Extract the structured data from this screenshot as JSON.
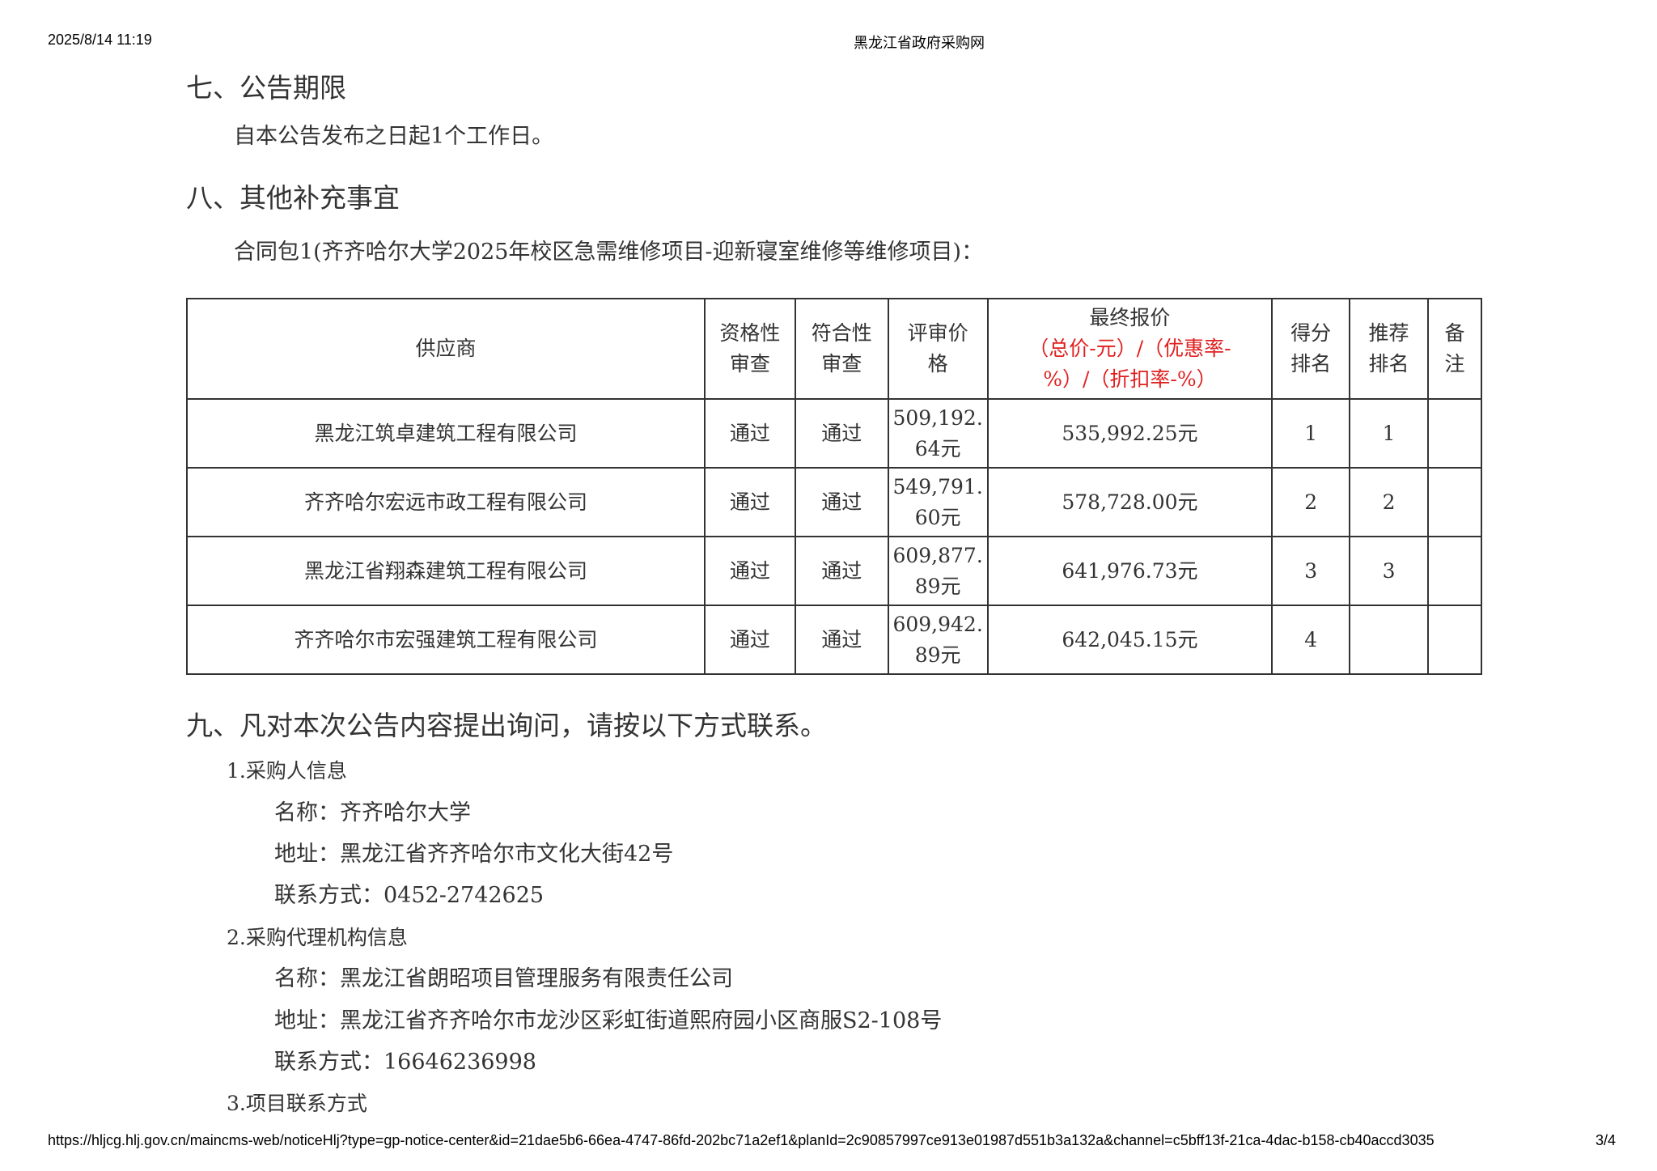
{
  "header": {
    "datetime": "2025/8/14 11:19",
    "site": "黑龙江省政府采购网"
  },
  "footer": {
    "url": "https://hljcg.hlj.gov.cn/maincms-web/noticeHlj?type=gp-notice-center&id=21dae5b6-66ea-4747-86fd-202bc71a2ef1&planId=2c90857997ce913e01987d551b3a132a&channel=c5bff13f-21ca-4dac-b158-cb40accd3035",
    "page": "3/4"
  },
  "section7": {
    "title": "七、公告期限",
    "text": "自本公告发布之日起1个工作日。"
  },
  "section8": {
    "title": "八、其他补充事宜",
    "package": "合同包1(齐齐哈尔大学2025年校区急需维修项目-迎新寝室维修等维修项目)："
  },
  "table": {
    "headers": {
      "supplier": "供应商",
      "qual": [
        "资格性",
        "审查"
      ],
      "conf": [
        "符合性",
        "审查"
      ],
      "review": [
        "评审价",
        "格"
      ],
      "final": "最终报价",
      "final_note": [
        "（总价-元）/（优惠率-",
        "%）/（折扣率-%）"
      ],
      "score": [
        "得分",
        "排名"
      ],
      "rec": [
        "推荐",
        "排名"
      ],
      "remark": [
        "备",
        "注"
      ]
    },
    "rows": [
      {
        "supplier": "黑龙江筑卓建筑工程有限公司",
        "qual": "通过",
        "conf": "通过",
        "review": [
          "509,192.",
          "64元"
        ],
        "final": "535,992.25元",
        "score": "1",
        "rec": "1",
        "remark": ""
      },
      {
        "supplier": "齐齐哈尔宏远市政工程有限公司",
        "qual": "通过",
        "conf": "通过",
        "review": [
          "549,791.",
          "60元"
        ],
        "final": "578,728.00元",
        "score": "2",
        "rec": "2",
        "remark": ""
      },
      {
        "supplier": "黑龙江省翔森建筑工程有限公司",
        "qual": "通过",
        "conf": "通过",
        "review": [
          "609,877.",
          "89元"
        ],
        "final": "641,976.73元",
        "score": "3",
        "rec": "3",
        "remark": ""
      },
      {
        "supplier": "齐齐哈尔市宏强建筑工程有限公司",
        "qual": "通过",
        "conf": "通过",
        "review": [
          "609,942.",
          "89元"
        ],
        "final": "642,045.15元",
        "score": "4",
        "rec": "",
        "remark": ""
      }
    ]
  },
  "section9": {
    "title": "九、凡对本次公告内容提出询问，请按以下方式联系。",
    "buyer": {
      "title": "1.采购人信息",
      "name": "名称：齐齐哈尔大学",
      "address": "地址：黑龙江省齐齐哈尔市文化大街42号",
      "contact": "联系方式：0452-2742625"
    },
    "agency": {
      "title": "2.采购代理机构信息",
      "name": "名称：黑龙江省朗昭项目管理服务有限责任公司",
      "address": "地址：黑龙江省齐齐哈尔市龙沙区彩虹街道熙府园小区商服S2-108号",
      "contact": "联系方式：16646236998"
    },
    "project": {
      "title": "3.项目联系方式"
    }
  },
  "colors": {
    "note_red": "#e02020"
  }
}
